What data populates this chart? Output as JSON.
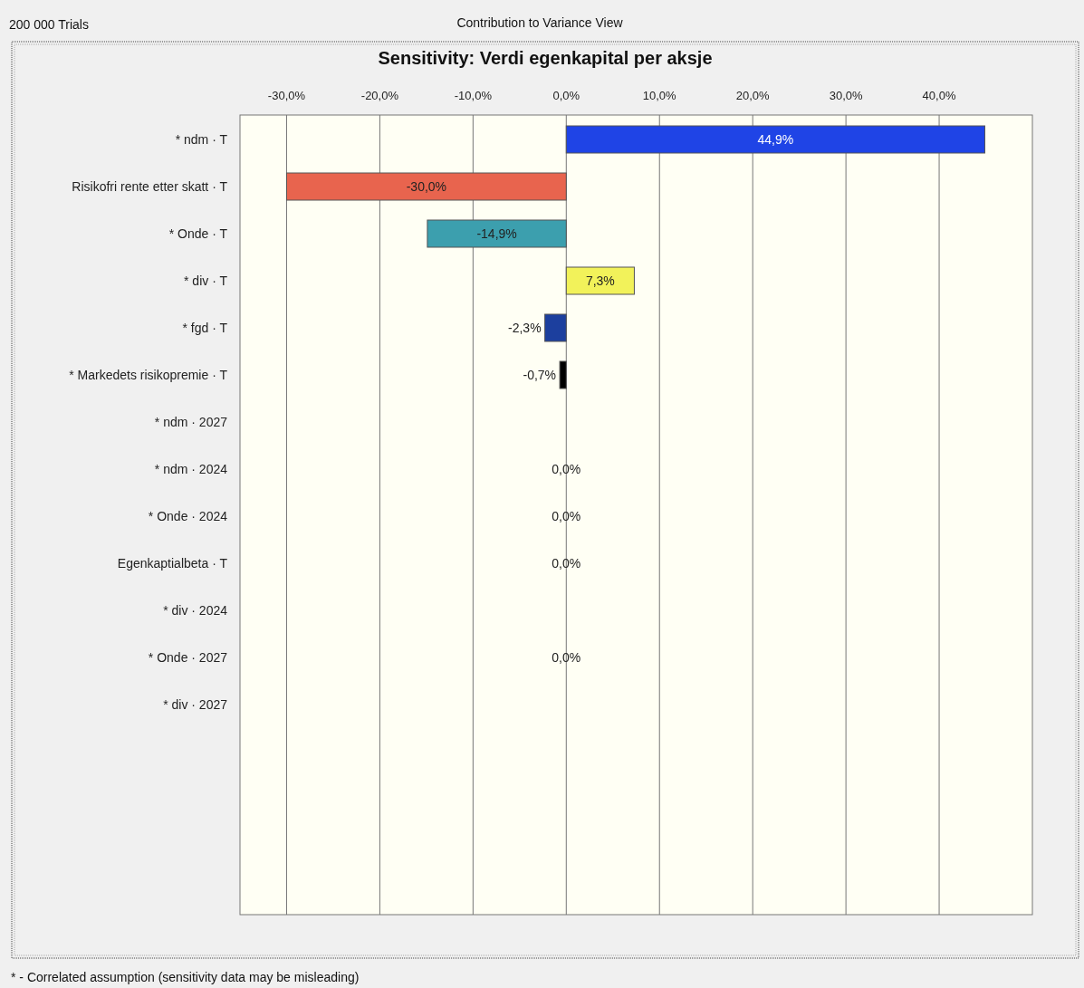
{
  "chart_data": {
    "type": "bar",
    "orientation": "horizontal",
    "title": "Sensitivity: Verdi egenkapital per aksje",
    "subtitle": "Contribution to Variance View",
    "annotations": [
      "200 000 Trials",
      "* - Correlated assumption (sensitivity data may be misleading)"
    ],
    "categories": [
      "* ndm · T",
      "Risikofri rente etter skatt · T",
      "* Onde · T",
      "* div · T",
      "* fgd · T",
      "* Markedets risikopremie · T",
      "* ndm · 2027",
      "* ndm · 2024",
      "* Onde · 2024",
      "Egenkaptialbeta · T",
      "* div · 2024",
      "* Onde · 2027",
      "* div · 2027"
    ],
    "values": [
      44.9,
      -30.0,
      -14.9,
      7.3,
      -2.3,
      -0.7,
      0,
      0,
      0,
      0,
      0,
      0,
      0
    ],
    "value_labels": [
      "44,9%",
      "-30,0%",
      "-14,9%",
      "7,3%",
      "-2,3%",
      "-0,7%",
      null,
      "0,0%",
      "0,0%",
      "0,0%",
      null,
      "0,0%",
      null
    ],
    "colors": [
      "#1f44e6",
      "#e8644e",
      "#3c9fae",
      "#f2f25a",
      "#1c3f9e",
      "#000000",
      "#3c9fae",
      "#3c9fae",
      "#3c9fae",
      "#3c9fae",
      "#3c9fae",
      "#3c9fae",
      "#3c9fae"
    ],
    "xlim": [
      -35,
      50
    ],
    "xticks": [
      {
        "value": -30,
        "label": "-30,0%"
      },
      {
        "value": -20,
        "label": "-20,0%"
      },
      {
        "value": -10,
        "label": "-10,0%"
      },
      {
        "value": 0,
        "label": "0,0%"
      },
      {
        "value": 10,
        "label": "10,0%"
      },
      {
        "value": 20,
        "label": "20,0%"
      },
      {
        "value": 30,
        "label": "30,0%"
      },
      {
        "value": 40,
        "label": "40,0%"
      }
    ],
    "grid": "x"
  }
}
